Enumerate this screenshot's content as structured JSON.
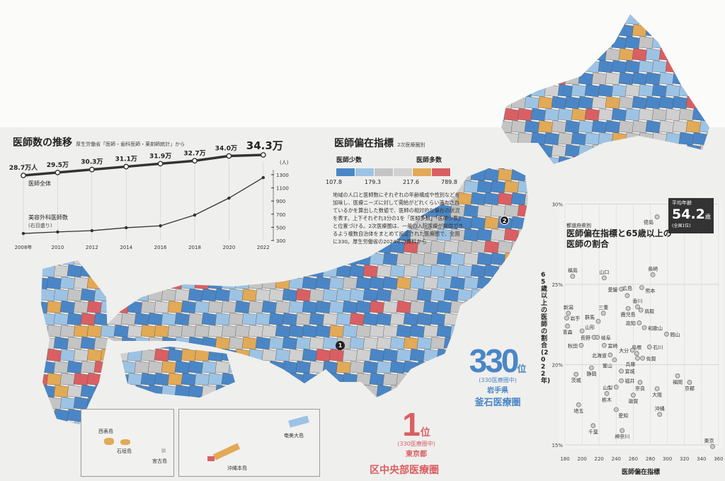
{
  "line_chart_title": "医師数の推移",
  "line_chart_source": "厚生労働省「医師・歯科医師・薬剤師統計」から",
  "map_title": "医師偏在指標",
  "map_subtitle": "2次医療圏別",
  "legend": {
    "few_label": "医師少数",
    "many_label": "医師多数",
    "breaks": [
      "107.8",
      "179.3",
      "217.6",
      "789.8"
    ],
    "colors": [
      "#4a86c6",
      "#9dc3e4",
      "#c4c4c4",
      "#d0d0d0",
      "#e2a956",
      "#d95f63"
    ]
  },
  "map_note": "地域の人口と医師数にそれぞれの年齢構成や性別などを加味し、医療ニーズに対して需給がどれくらい満たされているかを算出した数値で、医師の相対的な偏在の状況を表す。上下それぞれ3分の1を「医師多数」「医師少数」と位置づける。2次医療圏は、一般の入院医療が提供できるよう複数自治体をまとめて設定された医療圏で、全国に330。厚生労働省の2024年の資料から",
  "rank_top": {
    "rank": "1",
    "suffix": "位",
    "of": "(330医療圏中)",
    "pref": "東京都",
    "area": "区中央部医療圏",
    "pin": "1"
  },
  "rank_bottom": {
    "rank": "330",
    "suffix": "位",
    "of": "(330医療圏中)",
    "pref": "岩手県",
    "area": "釜石医療圏",
    "pin": "2"
  },
  "insets": {
    "left": [
      "西表島",
      "石垣島",
      "宮古島"
    ],
    "right": [
      "奄美大島",
      "沖縄本島"
    ]
  },
  "age_badge": {
    "label": "平均年齢",
    "value": "54.2",
    "unit": "歳",
    "note": "(全国1位)"
  },
  "chart_data": [
    {
      "type": "line",
      "title": "医師数の推移",
      "x": [
        "2008年",
        "2010",
        "2012",
        "2014",
        "2016",
        "2018",
        "2020",
        "2022"
      ],
      "series": [
        {
          "name": "医師全体",
          "axis": "left",
          "unit": "万人",
          "values": [
            28.7,
            29.5,
            30.3,
            31.1,
            31.9,
            32.7,
            34.0,
            34.3
          ],
          "labels": [
            "28.7万人",
            "29.5万",
            "30.3万",
            "31.1万",
            "31.9万",
            "32.7万",
            "34.0万",
            "34.3万"
          ]
        },
        {
          "name": "美容外科医師数",
          "axis": "right",
          "note": "(右目盛り)",
          "values": [
            407,
            430,
            450,
            494,
            523,
            687,
            945,
            1256
          ]
        }
      ],
      "right_axis": {
        "unit": "(人)",
        "ticks": [
          "1300",
          "1100",
          "900",
          "700",
          "500",
          "300"
        ],
        "ylim": [
          300,
          1300
        ]
      }
    },
    {
      "type": "scatter",
      "subtitle": "都道府県別",
      "title": "医師偏在指標と65歳以上の医師の割合",
      "xlabel": "医師偏在指標",
      "ylabel": "65歳以上の医師の割合(2022年)",
      "xlim": [
        180,
        360
      ],
      "ylim": [
        15,
        30
      ],
      "xticks": [
        "180",
        "200",
        "220",
        "240",
        "260",
        "280",
        "300",
        "320",
        "340",
        "360"
      ],
      "yticks": [
        "15%",
        "20%",
        "25%",
        "30%"
      ],
      "points": [
        {
          "name": "徳島",
          "x": 288,
          "y": 29.2
        },
        {
          "name": "福島",
          "x": 189,
          "y": 25.5
        },
        {
          "name": "山口",
          "x": 226,
          "y": 25.4
        },
        {
          "name": "長崎",
          "x": 283,
          "y": 25.6
        },
        {
          "name": "愛媛",
          "x": 246,
          "y": 24.7
        },
        {
          "name": "熊本",
          "x": 270,
          "y": 24.8
        },
        {
          "name": "広島",
          "x": 253,
          "y": 24.3
        },
        {
          "name": "香川",
          "x": 265,
          "y": 23.6
        },
        {
          "name": "鳥取",
          "x": 269,
          "y": 23.4
        },
        {
          "name": "鹿児島",
          "x": 254,
          "y": 23.5
        },
        {
          "name": "三重",
          "x": 225,
          "y": 23.2
        },
        {
          "name": "新潟",
          "x": 184,
          "y": 23.2
        },
        {
          "name": "岩手",
          "x": 182,
          "y": 22.9
        },
        {
          "name": "群馬",
          "x": 219,
          "y": 22.7
        },
        {
          "name": "高知",
          "x": 267,
          "y": 22.6
        },
        {
          "name": "和歌山",
          "x": 273,
          "y": 22.3
        },
        {
          "name": "青森",
          "x": 183,
          "y": 22.4
        },
        {
          "name": "山形",
          "x": 200,
          "y": 22.1
        },
        {
          "name": "岡山",
          "x": 299,
          "y": 21.9
        },
        {
          "name": "長野",
          "x": 214,
          "y": 21.7
        },
        {
          "name": "岐阜",
          "x": 218,
          "y": 21.7
        },
        {
          "name": "秋田",
          "x": 199,
          "y": 21.2
        },
        {
          "name": "宮崎",
          "x": 226,
          "y": 21.2
        },
        {
          "name": "島根",
          "x": 264,
          "y": 20.7
        },
        {
          "name": "大分",
          "x": 259,
          "y": 20.9
        },
        {
          "name": "石川",
          "x": 279,
          "y": 21.1
        },
        {
          "name": "北海道",
          "x": 233,
          "y": 20.6
        },
        {
          "name": "兵庫",
          "x": 265,
          "y": 20.4
        },
        {
          "name": "佐賀",
          "x": 271,
          "y": 20.4
        },
        {
          "name": "富山",
          "x": 238,
          "y": 20.3
        },
        {
          "name": "静岡",
          "x": 211,
          "y": 19.8
        },
        {
          "name": "宮城",
          "x": 246,
          "y": 19.6
        },
        {
          "name": "茨城",
          "x": 193,
          "y": 19.4
        },
        {
          "name": "福岡",
          "x": 312,
          "y": 19.3
        },
        {
          "name": "福井",
          "x": 246,
          "y": 19.0
        },
        {
          "name": "奈良",
          "x": 268,
          "y": 18.9
        },
        {
          "name": "京都",
          "x": 326,
          "y": 18.9
        },
        {
          "name": "山梨",
          "x": 240,
          "y": 18.6
        },
        {
          "name": "大阪",
          "x": 288,
          "y": 18.5
        },
        {
          "name": "栃木",
          "x": 229,
          "y": 18.2
        },
        {
          "name": "滋賀",
          "x": 260,
          "y": 18.1
        },
        {
          "name": "埼玉",
          "x": 196,
          "y": 17.5
        },
        {
          "name": "愛知",
          "x": 240,
          "y": 17.2
        },
        {
          "name": "沖縄",
          "x": 291,
          "y": 16.9
        },
        {
          "name": "千葉",
          "x": 213,
          "y": 16.2
        },
        {
          "name": "神奈川",
          "x": 247,
          "y": 15.9
        },
        {
          "name": "東京",
          "x": 353,
          "y": 14.9
        }
      ]
    }
  ]
}
